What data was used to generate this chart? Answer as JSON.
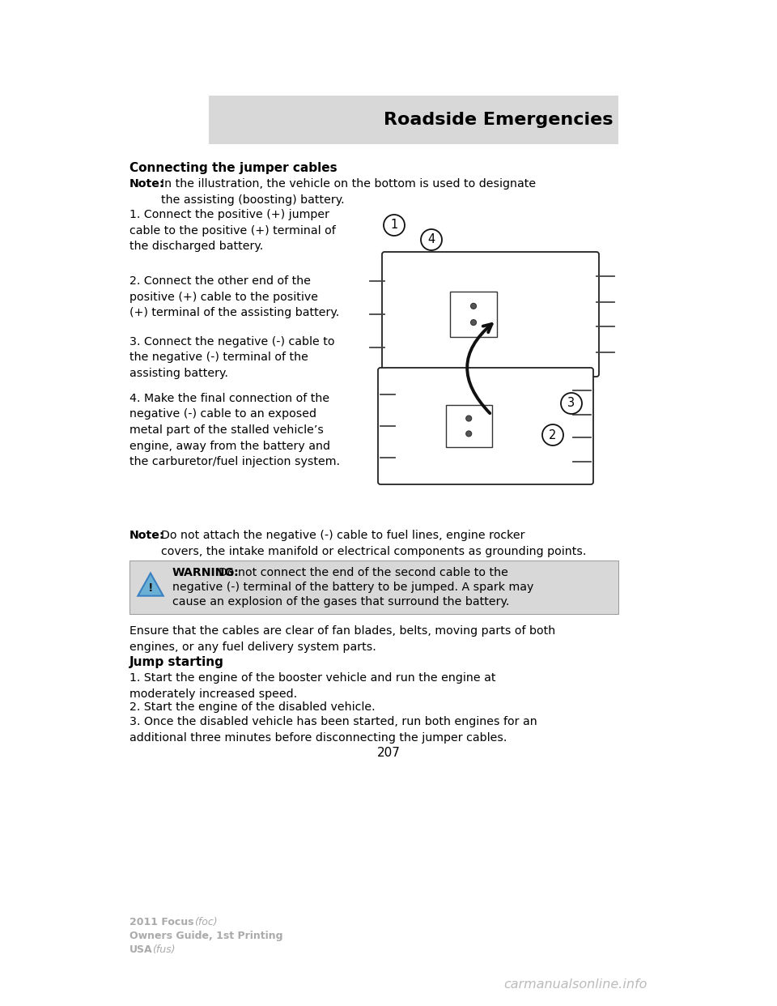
{
  "bg_color": "#ffffff",
  "header_bg": "#d8d8d8",
  "header_text": "Roadside Emergencies",
  "page_number": "207",
  "section_title": "Connecting the jumper cables",
  "note1_bold": "Note:",
  "note1_text": "In the illustration, the vehicle on the bottom is used to designate\nthe assisting (boosting) battery.",
  "step1": "1. Connect the positive (+) jumper\ncable to the positive (+) terminal of\nthe discharged battery.",
  "step2": "2. Connect the other end of the\npositive (+) cable to the positive\n(+) terminal of the assisting battery.",
  "step3": "3. Connect the negative (-) cable to\nthe negative (-) terminal of the\nassisting battery.",
  "step4": "4. Make the final connection of the\nnegative (-) cable to an exposed\nmetal part of the stalled vehicle’s\nengine, away from the battery and\nthe carburetor/fuel injection system.",
  "note2_bold": "Note:",
  "note2_text": "Do not attach the negative (-) cable to fuel lines, engine rocker\ncovers, the intake manifold or electrical components as grounding points.",
  "warning_bold": "WARNING:",
  "warning_line1": "Do not connect the end of the second cable to the",
  "warning_line2": "negative (-) terminal of the battery to be jumped. A spark may",
  "warning_line3": "cause an explosion of the gases that surround the battery.",
  "warning_bg": "#d8d8d8",
  "ensure_text": "Ensure that the cables are clear of fan blades, belts, moving parts of both\nengines, or any fuel delivery system parts.",
  "jump_title": "Jump starting",
  "jump1": "1. Start the engine of the booster vehicle and run the engine at\nmoderately increased speed.",
  "jump2": "2. Start the engine of the disabled vehicle.",
  "jump3": "3. Once the disabled vehicle has been started, run both engines for an\nadditional three minutes before disconnecting the jumper cables.",
  "footer1_bold": "2011 Focus",
  "footer1_norm": " (foc)",
  "footer2": "Owners Guide, 1st Printing",
  "footer3_bold": "USA",
  "footer3_norm": " (fus)",
  "watermark": "carmanualsonline.info",
  "body_fs": 10.2,
  "title_fs": 11.0,
  "header_fs": 16.0,
  "footer_fs": 9.0,
  "warn_tri_color": "#6ab0d4"
}
